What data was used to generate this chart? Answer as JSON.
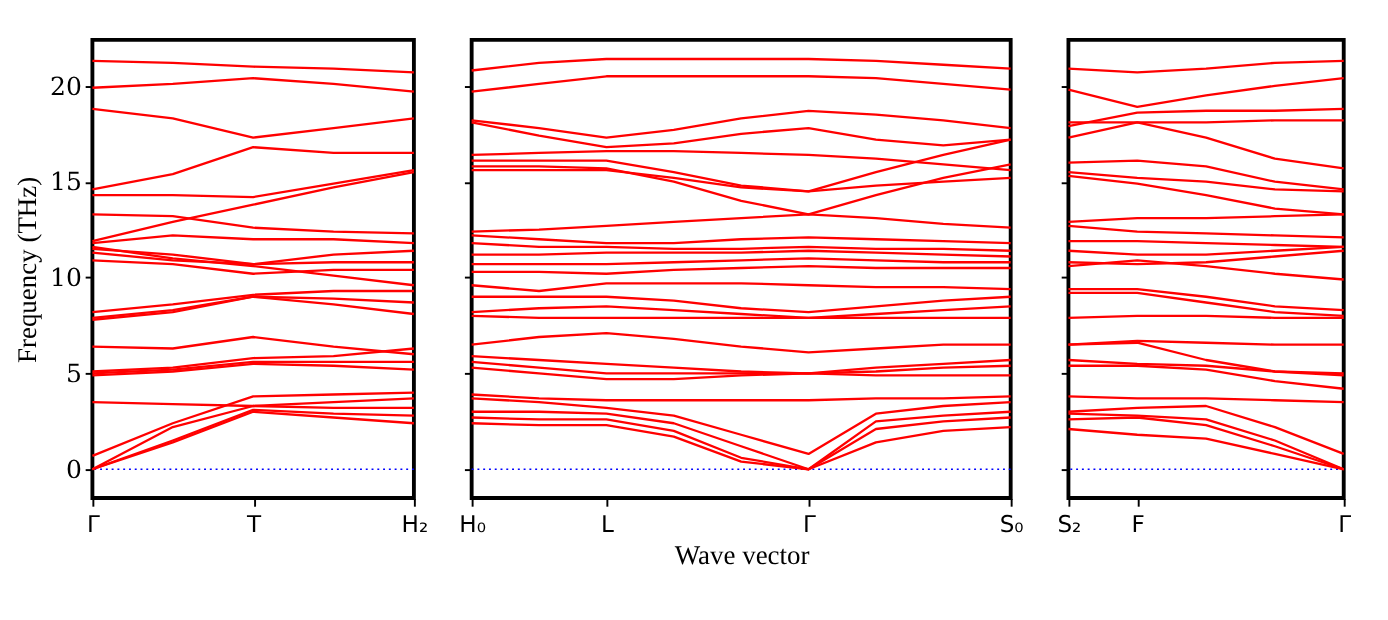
{
  "chart_data": [
    {
      "type": "line",
      "ylabel": "Frequency (THz)",
      "color": "#ff0000",
      "grid": false,
      "ylim": [
        -1.5,
        22.4
      ],
      "yticks": [
        0,
        5,
        10,
        15,
        20
      ],
      "categories": [
        "Γ",
        null,
        "T",
        null,
        "H₂"
      ],
      "ref_lines": [
        {
          "axis": "y",
          "value": 0,
          "color": "#0000ff",
          "line_style": "dotted"
        }
      ],
      "series": [
        {
          "values": [
            21.3,
            21.2,
            21.0,
            20.9,
            20.7
          ]
        },
        {
          "values": [
            19.9,
            20.1,
            20.4,
            20.1,
            19.7
          ]
        },
        {
          "values": [
            18.8,
            18.3,
            17.3,
            17.8,
            18.3
          ]
        },
        {
          "values": [
            14.6,
            15.4,
            16.8,
            16.5,
            16.5
          ]
        },
        {
          "values": [
            14.3,
            14.3,
            14.2,
            14.9,
            15.6
          ]
        },
        {
          "values": [
            11.9,
            12.9,
            13.8,
            14.7,
            15.5
          ]
        },
        {
          "values": [
            13.3,
            13.2,
            12.6,
            12.4,
            12.3
          ]
        },
        {
          "values": [
            11.8,
            12.2,
            12.0,
            12.0,
            11.8
          ]
        },
        {
          "values": [
            11.5,
            11.2,
            10.7,
            11.2,
            11.4
          ]
        },
        {
          "values": [
            11.3,
            10.9,
            10.7,
            10.8,
            10.8
          ]
        },
        {
          "values": [
            10.9,
            10.7,
            10.2,
            10.4,
            10.4
          ]
        },
        {
          "values": [
            11.6,
            11.0,
            10.6,
            10.1,
            9.6
          ]
        },
        {
          "values": [
            8.2,
            8.6,
            9.1,
            9.3,
            9.3
          ]
        },
        {
          "values": [
            7.9,
            8.3,
            9.0,
            8.9,
            8.7
          ]
        },
        {
          "values": [
            7.8,
            8.2,
            9.0,
            8.6,
            8.1
          ]
        },
        {
          "values": [
            6.4,
            6.3,
            6.9,
            6.4,
            6.0
          ]
        },
        {
          "values": [
            5.1,
            5.3,
            5.8,
            5.9,
            6.3
          ]
        },
        {
          "values": [
            5.0,
            5.2,
            5.6,
            5.6,
            5.6
          ]
        },
        {
          "values": [
            4.9,
            5.1,
            5.5,
            5.4,
            5.2
          ]
        },
        {
          "values": [
            3.5,
            3.4,
            3.3,
            3.2,
            3.2
          ]
        },
        {
          "values": [
            0.7,
            2.4,
            3.8,
            3.9,
            4.0
          ]
        },
        {
          "values": [
            0.0,
            2.2,
            3.3,
            3.5,
            3.7
          ]
        },
        {
          "values": [
            0.0,
            1.5,
            3.1,
            2.9,
            2.8
          ]
        },
        {
          "values": [
            0.0,
            1.4,
            3.0,
            2.7,
            2.4
          ]
        }
      ]
    },
    {
      "type": "line",
      "xlabel": "Wave vector",
      "color": "#ff0000",
      "grid": false,
      "tick_labels": "x",
      "ylim": [
        -1.5,
        22.4
      ],
      "yticks": [
        0,
        5,
        10,
        15,
        20
      ],
      "categories": [
        "H₀",
        null,
        "L",
        null,
        null,
        "Γ",
        null,
        null,
        "S₀"
      ],
      "ref_lines": [
        {
          "axis": "y",
          "value": 0,
          "color": "#0000ff",
          "line_style": "dotted"
        }
      ],
      "series": [
        {
          "values": [
            20.8,
            21.2,
            21.4,
            21.4,
            21.4,
            21.4,
            21.3,
            21.1,
            20.9
          ]
        },
        {
          "values": [
            19.7,
            20.1,
            20.5,
            20.5,
            20.5,
            20.5,
            20.4,
            20.1,
            19.8
          ]
        },
        {
          "values": [
            18.2,
            17.8,
            17.3,
            17.7,
            18.3,
            18.7,
            18.5,
            18.2,
            17.8
          ]
        },
        {
          "values": [
            18.1,
            17.4,
            16.8,
            17.0,
            17.5,
            17.8,
            17.2,
            16.9,
            17.2
          ]
        },
        {
          "values": [
            16.4,
            16.5,
            16.6,
            16.6,
            16.5,
            16.4,
            16.2,
            15.9,
            15.6
          ]
        },
        {
          "values": [
            16.1,
            16.1,
            16.1,
            15.5,
            14.8,
            14.5,
            15.5,
            16.4,
            17.2
          ]
        },
        {
          "values": [
            15.8,
            15.8,
            15.7,
            15.0,
            14.0,
            13.3,
            14.3,
            15.2,
            15.9
          ]
        },
        {
          "values": [
            15.6,
            15.6,
            15.6,
            15.2,
            14.7,
            14.5,
            14.8,
            15.0,
            15.2
          ]
        },
        {
          "values": [
            12.4,
            12.5,
            12.7,
            12.9,
            13.1,
            13.3,
            13.1,
            12.8,
            12.6
          ]
        },
        {
          "values": [
            12.2,
            12.0,
            11.8,
            11.8,
            12.0,
            12.1,
            12.0,
            11.9,
            11.8
          ]
        },
        {
          "values": [
            11.8,
            11.6,
            11.6,
            11.5,
            11.5,
            11.6,
            11.5,
            11.5,
            11.4
          ]
        },
        {
          "values": [
            11.2,
            11.2,
            11.3,
            11.3,
            11.3,
            11.4,
            11.3,
            11.2,
            11.1
          ]
        },
        {
          "values": [
            10.7,
            10.7,
            10.7,
            10.8,
            10.9,
            11.0,
            10.9,
            10.8,
            10.8
          ]
        },
        {
          "values": [
            10.3,
            10.3,
            10.2,
            10.4,
            10.5,
            10.6,
            10.5,
            10.5,
            10.5
          ]
        },
        {
          "values": [
            9.6,
            9.3,
            9.7,
            9.7,
            9.7,
            9.6,
            9.5,
            9.5,
            9.4
          ]
        },
        {
          "values": [
            9.0,
            9.0,
            9.0,
            8.8,
            8.4,
            8.2,
            8.5,
            8.8,
            9.0
          ]
        },
        {
          "values": [
            8.2,
            8.4,
            8.5,
            8.3,
            8.1,
            7.9,
            8.1,
            8.3,
            8.5
          ]
        },
        {
          "values": [
            8.0,
            7.9,
            7.9,
            7.9,
            7.9,
            7.9,
            7.9,
            7.9,
            7.9
          ]
        },
        {
          "values": [
            6.5,
            6.9,
            7.1,
            6.8,
            6.4,
            6.1,
            6.3,
            6.5,
            6.5
          ]
        },
        {
          "values": [
            5.9,
            5.7,
            5.5,
            5.3,
            5.1,
            5.0,
            5.3,
            5.5,
            5.7
          ]
        },
        {
          "values": [
            5.6,
            5.3,
            5.0,
            5.0,
            5.0,
            5.0,
            5.1,
            5.3,
            5.4
          ]
        },
        {
          "values": [
            5.3,
            5.0,
            4.7,
            4.7,
            4.9,
            5.0,
            4.9,
            4.9,
            4.9
          ]
        },
        {
          "values": [
            3.9,
            3.7,
            3.6,
            3.6,
            3.6,
            3.6,
            3.7,
            3.7,
            3.8
          ]
        },
        {
          "values": [
            3.7,
            3.5,
            3.2,
            2.8,
            1.8,
            0.8,
            2.9,
            3.3,
            3.5
          ]
        },
        {
          "values": [
            3.0,
            3.0,
            2.9,
            2.4,
            1.2,
            0.0,
            2.5,
            2.8,
            3.0
          ]
        },
        {
          "values": [
            2.7,
            2.6,
            2.6,
            2.0,
            0.6,
            0.0,
            2.1,
            2.5,
            2.7
          ]
        },
        {
          "values": [
            2.4,
            2.3,
            2.3,
            1.7,
            0.4,
            0.0,
            1.4,
            2.0,
            2.2
          ]
        }
      ]
    },
    {
      "type": "line",
      "color": "#ff0000",
      "grid": false,
      "tick_labels": "x",
      "ylim": [
        -1.5,
        22.4
      ],
      "yticks": [
        0,
        5,
        10,
        15,
        20
      ],
      "categories": [
        "S₂",
        "F",
        null,
        null,
        "Γ"
      ],
      "ref_lines": [
        {
          "axis": "y",
          "value": 0,
          "color": "#0000ff",
          "line_style": "dotted"
        }
      ],
      "series": [
        {
          "values": [
            20.9,
            20.7,
            20.9,
            21.2,
            21.3
          ]
        },
        {
          "values": [
            19.8,
            18.9,
            19.5,
            20.0,
            20.4
          ]
        },
        {
          "values": [
            18.1,
            18.1,
            18.1,
            18.2,
            18.2
          ]
        },
        {
          "values": [
            17.9,
            18.6,
            18.7,
            18.7,
            18.8
          ]
        },
        {
          "values": [
            17.3,
            18.1,
            17.3,
            16.2,
            15.7
          ]
        },
        {
          "values": [
            16.0,
            16.1,
            15.8,
            15.0,
            14.6
          ]
        },
        {
          "values": [
            15.5,
            15.2,
            15.0,
            14.6,
            14.5
          ]
        },
        {
          "values": [
            15.3,
            14.9,
            14.3,
            13.6,
            13.3
          ]
        },
        {
          "values": [
            12.9,
            13.1,
            13.1,
            13.2,
            13.3
          ]
        },
        {
          "values": [
            12.7,
            12.4,
            12.3,
            12.2,
            12.1
          ]
        },
        {
          "values": [
            11.9,
            11.9,
            11.8,
            11.7,
            11.6
          ]
        },
        {
          "values": [
            11.4,
            11.2,
            11.2,
            11.4,
            11.6
          ]
        },
        {
          "values": [
            10.8,
            10.7,
            10.8,
            11.1,
            11.4
          ]
        },
        {
          "values": [
            10.6,
            10.9,
            10.6,
            10.2,
            9.9
          ]
        },
        {
          "values": [
            9.4,
            9.4,
            9.0,
            8.5,
            8.3
          ]
        },
        {
          "values": [
            9.2,
            9.2,
            8.7,
            8.2,
            8.0
          ]
        },
        {
          "values": [
            7.9,
            8.0,
            8.0,
            7.9,
            7.9
          ]
        },
        {
          "values": [
            6.5,
            6.7,
            6.6,
            6.5,
            6.5
          ]
        },
        {
          "values": [
            6.5,
            6.6,
            5.7,
            5.1,
            5.0
          ]
        },
        {
          "values": [
            5.7,
            5.5,
            5.4,
            5.1,
            4.9
          ]
        },
        {
          "values": [
            5.4,
            5.4,
            5.2,
            4.6,
            4.2
          ]
        },
        {
          "values": [
            3.8,
            3.7,
            3.7,
            3.6,
            3.5
          ]
        },
        {
          "values": [
            3.0,
            3.2,
            3.3,
            2.2,
            0.8
          ]
        },
        {
          "values": [
            2.9,
            2.8,
            2.6,
            1.5,
            0.0
          ]
        },
        {
          "values": [
            2.6,
            2.7,
            2.3,
            1.2,
            0.0
          ]
        },
        {
          "values": [
            2.1,
            1.8,
            1.6,
            0.8,
            0.0
          ]
        }
      ]
    }
  ]
}
